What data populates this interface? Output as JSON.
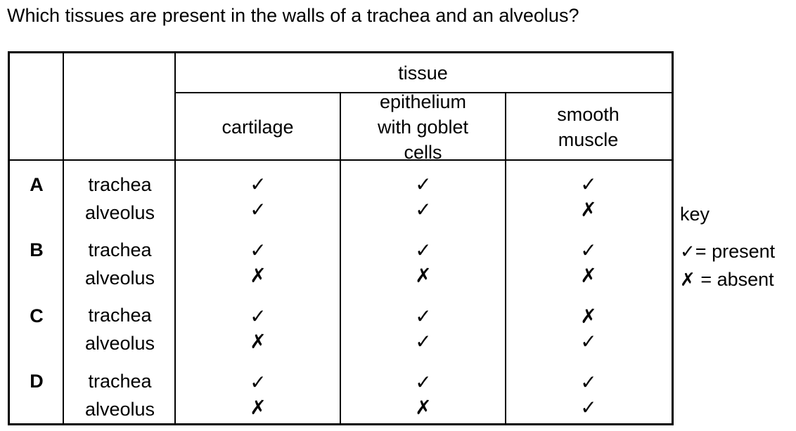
{
  "question": "Which tissues are present in the walls of a trachea and an alveolus?",
  "table": {
    "group_header": "tissue",
    "columns": [
      "cartilage",
      "epithelium with goblet cells",
      "smooth muscle"
    ],
    "rows": [
      {
        "option": "A",
        "entries": [
          {
            "organ": "trachea",
            "marks": [
              "✓",
              "✓",
              "✓"
            ]
          },
          {
            "organ": "alveolus",
            "marks": [
              "✓",
              "✓",
              "✗"
            ]
          }
        ]
      },
      {
        "option": "B",
        "entries": [
          {
            "organ": "trachea",
            "marks": [
              "✓",
              "✓",
              "✓"
            ]
          },
          {
            "organ": "alveolus",
            "marks": [
              "✗",
              "✗",
              "✗"
            ]
          }
        ]
      },
      {
        "option": "C",
        "entries": [
          {
            "organ": "trachea",
            "marks": [
              "✓",
              "✓",
              "✗"
            ]
          },
          {
            "organ": "alveolus",
            "marks": [
              "✗",
              "✓",
              "✓"
            ]
          }
        ]
      },
      {
        "option": "D",
        "entries": [
          {
            "organ": "trachea",
            "marks": [
              "✓",
              "✓",
              "✓"
            ]
          },
          {
            "organ": "alveolus",
            "marks": [
              "✗",
              "✗",
              "✓"
            ]
          }
        ]
      }
    ]
  },
  "key": {
    "title": "key",
    "present_symbol": "✓",
    "present_label": "= present",
    "absent_symbol": "✗",
    "absent_label": "= absent"
  }
}
